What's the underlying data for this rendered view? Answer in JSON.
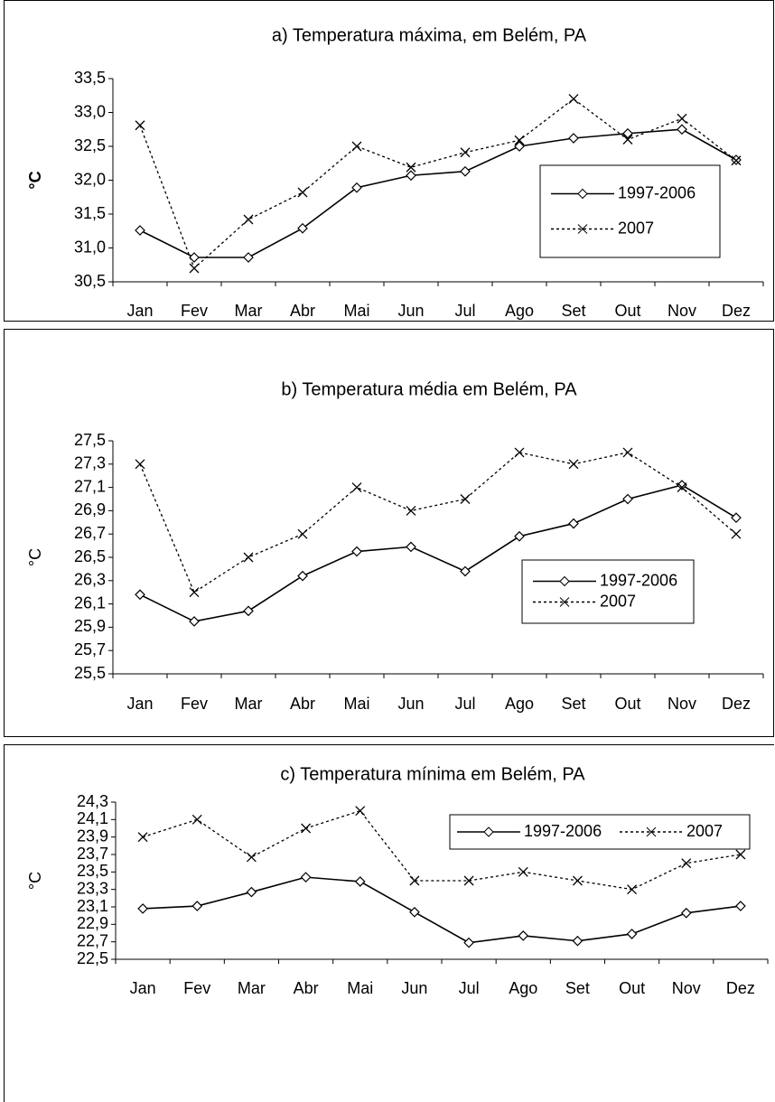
{
  "chart_data": [
    {
      "type": "line",
      "title": "a) Temperatura máxima, em Belém, PA",
      "ylabel": "°C",
      "categories": [
        "Jan",
        "Fev",
        "Mar",
        "Abr",
        "Mai",
        "Jun",
        "Jul",
        "Ago",
        "Set",
        "Out",
        "Nov",
        "Dez"
      ],
      "series": [
        {
          "name": "1997-2006",
          "color": "#000000",
          "style": "solid",
          "marker": "diamond",
          "values": [
            31.26,
            30.86,
            30.86,
            31.29,
            31.89,
            32.07,
            32.13,
            32.5,
            32.62,
            32.69,
            32.75,
            32.3
          ]
        },
        {
          "name": "2007",
          "color": "#000000",
          "style": "dotted",
          "marker": "x",
          "values": [
            32.81,
            30.7,
            31.42,
            31.82,
            32.5,
            32.19,
            32.41,
            32.59,
            33.2,
            32.6,
            32.91,
            32.29
          ]
        }
      ],
      "ylim": [
        30.5,
        33.5
      ],
      "yticks": [
        {
          "value": 30.5,
          "label": "30,5"
        },
        {
          "value": 31,
          "label": "31,0"
        },
        {
          "value": 31.5,
          "label": "31,5"
        },
        {
          "value": 32,
          "label": "32,0"
        },
        {
          "value": 32.5,
          "label": "32,5"
        },
        {
          "value": 33,
          "label": "33,0"
        },
        {
          "value": 33.5,
          "label": "33,5"
        }
      ],
      "legend": "right",
      "grid": false
    },
    {
      "type": "line",
      "title": "b) Temperatura média em Belém, PA",
      "ylabel": "°C",
      "categories": [
        "Jan",
        "Fev",
        "Mar",
        "Abr",
        "Mai",
        "Jun",
        "Jul",
        "Ago",
        "Set",
        "Out",
        "Nov",
        "Dez"
      ],
      "series": [
        {
          "name": "1997-2006",
          "color": "#000000",
          "style": "solid",
          "marker": "diamond",
          "values": [
            26.18,
            25.95,
            26.04,
            26.34,
            26.55,
            26.59,
            26.38,
            26.68,
            26.79,
            27.0,
            27.12,
            26.84
          ]
        },
        {
          "name": "2007",
          "color": "#000000",
          "style": "dotted",
          "marker": "x",
          "values": [
            27.3,
            26.2,
            26.5,
            26.7,
            27.1,
            26.9,
            27.0,
            27.4,
            27.3,
            27.4,
            27.1,
            26.7
          ]
        }
      ],
      "ylim": [
        25.5,
        27.5
      ],
      "yticks": [
        {
          "value": 25.5,
          "label": "25,5"
        },
        {
          "value": 25.7,
          "label": "25,7"
        },
        {
          "value": 25.9,
          "label": "25,9"
        },
        {
          "value": 26.1,
          "label": "26,1"
        },
        {
          "value": 26.3,
          "label": "26,3"
        },
        {
          "value": 26.5,
          "label": "26,5"
        },
        {
          "value": 26.7,
          "label": "26,7"
        },
        {
          "value": 26.9,
          "label": "26,9"
        },
        {
          "value": 27.1,
          "label": "27,1"
        },
        {
          "value": 27.3,
          "label": "27,3"
        },
        {
          "value": 27.5,
          "label": "27,5"
        }
      ],
      "legend": "right",
      "grid": false
    },
    {
      "type": "line",
      "title": "c) Temperatura mínima em Belém, PA",
      "ylabel": "°C",
      "categories": [
        "Jan",
        "Fev",
        "Mar",
        "Abr",
        "Mai",
        "Jun",
        "Jul",
        "Ago",
        "Set",
        "Out",
        "Nov",
        "Dez"
      ],
      "series": [
        {
          "name": "1997-2006",
          "color": "#000000",
          "style": "solid",
          "marker": "diamond",
          "values": [
            23.08,
            23.11,
            23.27,
            23.44,
            23.39,
            23.04,
            22.69,
            22.77,
            22.71,
            22.79,
            23.03,
            23.11
          ]
        },
        {
          "name": "2007",
          "color": "#000000",
          "style": "dotted",
          "marker": "x",
          "values": [
            23.9,
            24.1,
            23.67,
            24.0,
            24.2,
            23.4,
            23.4,
            23.5,
            23.4,
            23.3,
            23.6,
            23.7
          ]
        }
      ],
      "ylim": [
        22.5,
        24.3
      ],
      "yticks": [
        {
          "value": 22.5,
          "label": "22,5"
        },
        {
          "value": 22.7,
          "label": "22,7"
        },
        {
          "value": 22.9,
          "label": "22,9"
        },
        {
          "value": 23.1,
          "label": "23,1"
        },
        {
          "value": 23.3,
          "label": "23,3"
        },
        {
          "value": 23.5,
          "label": "23,5"
        },
        {
          "value": 23.7,
          "label": "23,7"
        },
        {
          "value": 23.9,
          "label": "23,9"
        },
        {
          "value": 24.1,
          "label": "24,1"
        },
        {
          "value": 24.3,
          "label": "24,3"
        }
      ],
      "legend": "upper right",
      "grid": false
    }
  ]
}
